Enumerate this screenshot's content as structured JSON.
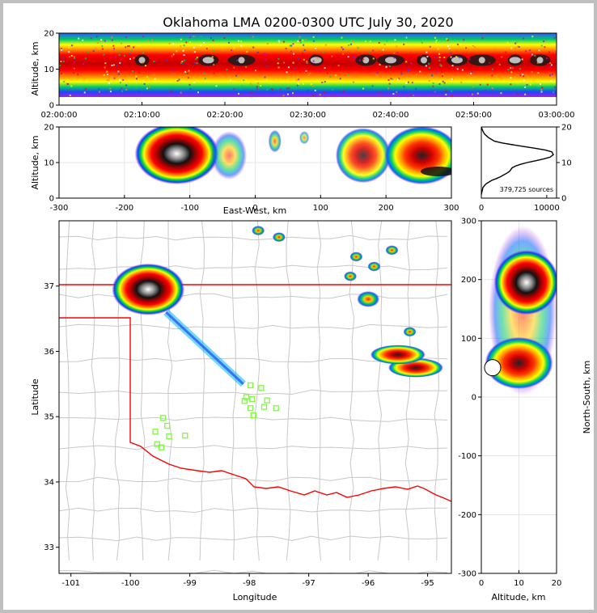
{
  "chart_data": [
    {
      "type": "heatmap",
      "title": "Oklahoma LMA 0200-0300 UTC July 30, 2020",
      "xlabel": "",
      "ylabel": "Altitude, km",
      "x_ticks": [
        "02:00:00",
        "02:10:00",
        "02:20:00",
        "02:30:00",
        "02:40:00",
        "02:50:00",
        "03:00:00"
      ],
      "y_ticks": [
        0,
        10,
        20
      ],
      "ylim": [
        0,
        20
      ],
      "grid": false,
      "core_altitude_km": 12.5,
      "dense_times": [
        "02:10",
        "02:18",
        "02:22",
        "02:31",
        "02:37",
        "02:40",
        "02:44",
        "02:48",
        "02:51",
        "02:55",
        "02:58"
      ]
    },
    {
      "type": "heatmap",
      "xlabel": "East-West, km",
      "ylabel": "Altitude, km",
      "x_ticks": [
        -300,
        -200,
        -100,
        0,
        100,
        200,
        300
      ],
      "y_ticks": [
        0,
        10,
        20
      ],
      "xlim": [
        -300,
        300
      ],
      "ylim": [
        0,
        20
      ],
      "grid": true
    },
    {
      "type": "line",
      "xlabel": "",
      "ylabel": "",
      "x_ticks": [
        0,
        10000
      ],
      "y_ticks": [
        0,
        10,
        20
      ],
      "xlim": [
        0,
        11500
      ],
      "ylim": [
        0,
        20
      ],
      "annotation": "379,725 sources",
      "series": [
        {
          "x": [
            0,
            250,
            700,
            1600,
            2300,
            2900,
            3400,
            3900,
            4300,
            4500,
            4700,
            5200,
            6000,
            7000,
            8300,
            9500,
            10500,
            11000,
            10800,
            9800,
            8300,
            6500,
            4800,
            3200,
            2000,
            1100,
            500,
            200,
            0
          ],
          "y": [
            1,
            3,
            4,
            5,
            5.5,
            6,
            6.5,
            7,
            7.5,
            8,
            8.5,
            9,
            9.5,
            10,
            10.5,
            11,
            11.5,
            12.2,
            13,
            13.5,
            14,
            14.5,
            15,
            15.5,
            16,
            17,
            18,
            19,
            20
          ]
        }
      ]
    },
    {
      "type": "scatter",
      "xlabel": "Longitude",
      "ylabel": "Latitude",
      "x_ticks": [
        -101,
        -100,
        -99,
        -98,
        -97,
        -96,
        -95
      ],
      "y_ticks": [
        33,
        34,
        35,
        36,
        37
      ],
      "xlim": [
        -101.2,
        -94.6
      ],
      "ylim": [
        32.6,
        38.0
      ],
      "stations_lon_lat": [
        [
          -99.45,
          34.98
        ],
        [
          -99.38,
          34.86
        ],
        [
          -99.58,
          34.77
        ],
        [
          -99.35,
          34.7
        ],
        [
          -99.55,
          34.58
        ],
        [
          -99.48,
          34.53
        ],
        [
          -99.08,
          34.71
        ],
        [
          -97.98,
          35.48
        ],
        [
          -97.8,
          35.44
        ],
        [
          -98.05,
          35.3
        ],
        [
          -97.95,
          35.27
        ],
        [
          -97.7,
          35.25
        ],
        [
          -98.08,
          35.24
        ],
        [
          -97.98,
          35.13
        ],
        [
          -97.75,
          35.15
        ],
        [
          -97.55,
          35.13
        ],
        [
          -97.93,
          35.02
        ]
      ],
      "storms": [
        {
          "lon": -99.7,
          "lat": 36.95,
          "intensity": "very high"
        },
        {
          "lon": -95.2,
          "lat": 35.75,
          "intensity": "high"
        },
        {
          "lon": -95.5,
          "lat": 35.95,
          "intensity": "high"
        },
        {
          "lon": -96.0,
          "lat": 36.8,
          "intensity": "moderate"
        }
      ]
    },
    {
      "type": "heatmap",
      "xlabel": "Altitude, km",
      "ylabel": "North-South, km",
      "x_ticks": [
        0,
        10,
        20
      ],
      "y_ticks": [
        -300,
        -200,
        -100,
        0,
        100,
        200,
        300
      ],
      "xlim": [
        0,
        20
      ],
      "ylim": [
        -300,
        300
      ],
      "grid": true
    }
  ]
}
